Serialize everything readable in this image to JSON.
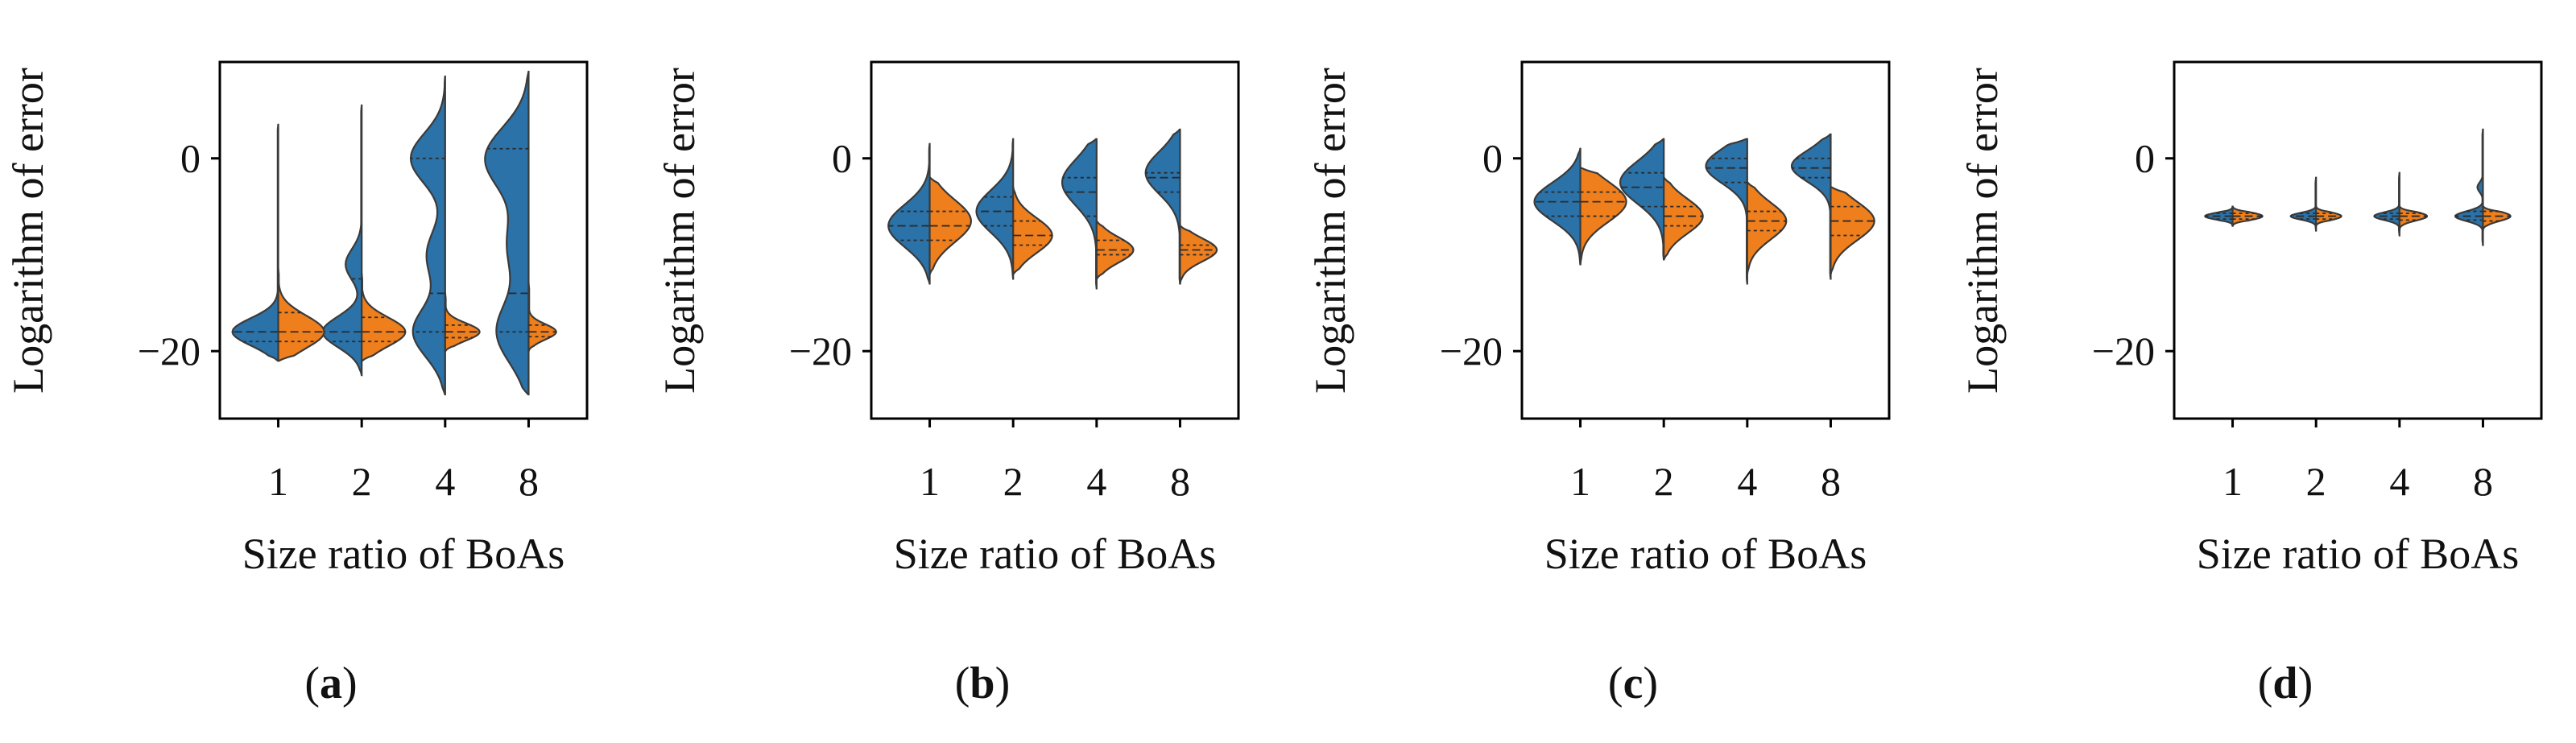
{
  "figure": {
    "colors": {
      "series_a": "#2a72a8",
      "series_b": "#ef7f1c",
      "outline": "#3a3a3a"
    }
  },
  "chart_data": [
    {
      "type": "violin",
      "panel_label": "a",
      "xlabel": "Size ratio of BoAs",
      "ylabel": "Logarithm of error",
      "categories": [
        "1",
        "2",
        "4",
        "8"
      ],
      "yticks": [
        "0",
        "−20"
      ],
      "ylim": [
        -27,
        10
      ],
      "series": [
        {
          "name": "left (blue)",
          "side": "left",
          "violins": [
            {
              "min": -21.0,
              "max": 3.5,
              "median": -18.0,
              "q1": -19.0,
              "q3": -14.0,
              "peaks": [
                {
                  "y": -18.0,
                  "w": 1.0
                }
              ],
              "spread": 1.4
            },
            {
              "min": -22.5,
              "max": 5.5,
              "median": -18.0,
              "q1": -19.0,
              "q3": -12.5,
              "peaks": [
                {
                  "y": -18.0,
                  "w": 0.85
                },
                {
                  "y": -11.0,
                  "w": 0.35
                }
              ],
              "spread": 1.6
            },
            {
              "min": -24.5,
              "max": 8.5,
              "median": -14.0,
              "q1": -18.0,
              "q3": 0.0,
              "peaks": [
                {
                  "y": 0.0,
                  "w": 0.75
                },
                {
                  "y": -18.0,
                  "w": 0.7
                },
                {
                  "y": -10.0,
                  "w": 0.4
                }
              ],
              "spread": 2.6
            },
            {
              "min": -24.5,
              "max": 9.0,
              "median": -14.0,
              "q1": -18.0,
              "q3": 1.0,
              "peaks": [
                {
                  "y": 0.0,
                  "w": 0.95
                },
                {
                  "y": -18.0,
                  "w": 0.7
                },
                {
                  "y": -9.0,
                  "w": 0.45
                }
              ],
              "spread": 3.2
            }
          ]
        },
        {
          "name": "right (orange)",
          "side": "right",
          "violins": [
            {
              "min": -21.0,
              "max": -11.5,
              "median": -18.0,
              "q1": -19.0,
              "q3": -16.0,
              "peaks": [
                {
                  "y": -18.0,
                  "w": 1.0
                }
              ],
              "spread": 1.7
            },
            {
              "min": -21.0,
              "max": -12.0,
              "median": -18.0,
              "q1": -19.0,
              "q3": -16.5,
              "peaks": [
                {
                  "y": -18.0,
                  "w": 0.95
                }
              ],
              "spread": 1.5
            },
            {
              "min": -20.0,
              "max": -14.0,
              "median": -18.0,
              "q1": -18.6,
              "q3": -17.3,
              "peaks": [
                {
                  "y": -18.0,
                  "w": 0.75
                }
              ],
              "spread": 0.9
            },
            {
              "min": -20.0,
              "max": -13.0,
              "median": -18.0,
              "q1": -18.5,
              "q3": -17.3,
              "peaks": [
                {
                  "y": -18.0,
                  "w": 0.6
                }
              ],
              "spread": 0.8
            }
          ]
        }
      ]
    },
    {
      "type": "violin",
      "panel_label": "b",
      "xlabel": "Size ratio of BoAs",
      "ylabel": "Logarithm of error",
      "categories": [
        "1",
        "2",
        "4",
        "8"
      ],
      "yticks": [
        "0",
        "−20"
      ],
      "ylim": [
        -27,
        10
      ],
      "series": [
        {
          "name": "left (blue)",
          "side": "left",
          "violins": [
            {
              "min": -13.0,
              "max": 1.5,
              "median": -7.0,
              "q1": -8.5,
              "q3": -5.5,
              "peaks": [
                {
                  "y": -7.0,
                  "w": 0.9
                }
              ],
              "spread": 2.2
            },
            {
              "min": -12.5,
              "max": 2.0,
              "median": -5.5,
              "q1": -7.0,
              "q3": -4.0,
              "peaks": [
                {
                  "y": -5.5,
                  "w": 0.8
                }
              ],
              "spread": 2.2
            },
            {
              "min": -13.5,
              "max": 2.0,
              "median": -3.5,
              "q1": -6.0,
              "q3": -2.0,
              "peaks": [
                {
                  "y": -2.5,
                  "w": 0.75
                }
              ],
              "spread": 2.4
            },
            {
              "min": -13.0,
              "max": 3.0,
              "median": -2.0,
              "q1": -3.5,
              "q3": -1.5,
              "peaks": [
                {
                  "y": -1.5,
                  "w": 0.75
                }
              ],
              "spread": 2.2
            }
          ]
        },
        {
          "name": "right (orange)",
          "side": "right",
          "violins": [
            {
              "min": -12.0,
              "max": -2.0,
              "median": -7.0,
              "q1": -8.5,
              "q3": -5.5,
              "peaks": [
                {
                  "y": -6.5,
                  "w": 0.9
                }
              ],
              "spread": 2.2
            },
            {
              "min": -12.0,
              "max": -3.0,
              "median": -8.0,
              "q1": -9.0,
              "q3": -6.5,
              "peaks": [
                {
                  "y": -8.0,
                  "w": 0.85
                }
              ],
              "spread": 1.8
            },
            {
              "min": -12.5,
              "max": -6.5,
              "median": -9.5,
              "q1": -10.0,
              "q3": -8.5,
              "peaks": [
                {
                  "y": -9.5,
                  "w": 0.8
                }
              ],
              "spread": 1.3
            },
            {
              "min": -13.0,
              "max": -7.0,
              "median": -9.5,
              "q1": -10.0,
              "q3": -9.0,
              "peaks": [
                {
                  "y": -9.5,
                  "w": 0.8
                }
              ],
              "spread": 1.2
            }
          ]
        }
      ]
    },
    {
      "type": "violin",
      "panel_label": "c",
      "xlabel": "Size ratio of BoAs",
      "ylabel": "Logarithm of error",
      "categories": [
        "1",
        "2",
        "4",
        "8"
      ],
      "yticks": [
        "0",
        "−20"
      ],
      "ylim": [
        -27,
        10
      ],
      "series": [
        {
          "name": "left (blue)",
          "side": "left",
          "violins": [
            {
              "min": -11.0,
              "max": 1.0,
              "median": -4.5,
              "q1": -6.0,
              "q3": -3.5,
              "peaks": [
                {
                  "y": -4.5,
                  "w": 1.0
                }
              ],
              "spread": 2.0
            },
            {
              "min": -10.5,
              "max": 2.0,
              "median": -3.0,
              "q1": -5.0,
              "q3": -1.5,
              "peaks": [
                {
                  "y": -2.5,
                  "w": 0.95
                }
              ],
              "spread": 2.2
            },
            {
              "min": -13.0,
              "max": 2.0,
              "median": -1.0,
              "q1": -2.5,
              "q3": 0.0,
              "peaks": [
                {
                  "y": -0.8,
                  "w": 0.9
                }
              ],
              "spread": 1.8
            },
            {
              "min": -12.5,
              "max": 2.5,
              "median": -1.0,
              "q1": -2.0,
              "q3": 0.0,
              "peaks": [
                {
                  "y": -0.8,
                  "w": 0.85
                }
              ],
              "spread": 1.6
            }
          ]
        },
        {
          "name": "right (orange)",
          "side": "right",
          "violins": [
            {
              "min": -11.0,
              "max": -1.0,
              "median": -4.5,
              "q1": -6.0,
              "q3": -3.5,
              "peaks": [
                {
                  "y": -4.5,
                  "w": 1.0
                }
              ],
              "spread": 2.1
            },
            {
              "min": -10.5,
              "max": -2.0,
              "median": -6.0,
              "q1": -7.0,
              "q3": -5.0,
              "peaks": [
                {
                  "y": -6.0,
                  "w": 0.85
                }
              ],
              "spread": 1.8
            },
            {
              "min": -12.0,
              "max": -2.5,
              "median": -6.5,
              "q1": -7.5,
              "q3": -5.5,
              "peaks": [
                {
                  "y": -6.5,
                  "w": 0.85
                }
              ],
              "spread": 1.9
            },
            {
              "min": -12.0,
              "max": -3.0,
              "median": -6.5,
              "q1": -8.0,
              "q3": -5.0,
              "peaks": [
                {
                  "y": -6.5,
                  "w": 0.95
                }
              ],
              "spread": 2.0
            }
          ]
        }
      ]
    },
    {
      "type": "violin",
      "panel_label": "d",
      "xlabel": "Size ratio of BoAs",
      "ylabel": "Logarithm of error",
      "categories": [
        "1",
        "2",
        "4",
        "8"
      ],
      "yticks": [
        "0",
        "−20"
      ],
      "ylim": [
        -27,
        10
      ],
      "series": [
        {
          "name": "left (blue)",
          "side": "left",
          "violins": [
            {
              "min": -7.0,
              "max": -5.0,
              "median": -6.0,
              "q1": -6.3,
              "q3": -5.7,
              "peaks": [
                {
                  "y": -6.0,
                  "w": 0.6
                }
              ],
              "spread": 0.35
            },
            {
              "min": -7.5,
              "max": -2.0,
              "median": -6.0,
              "q1": -6.3,
              "q3": -5.7,
              "peaks": [
                {
                  "y": -6.0,
                  "w": 0.55
                }
              ],
              "spread": 0.35
            },
            {
              "min": -8.0,
              "max": -1.5,
              "median": -6.0,
              "q1": -6.3,
              "q3": -5.7,
              "peaks": [
                {
                  "y": -6.0,
                  "w": 0.55
                }
              ],
              "spread": 0.4
            },
            {
              "min": -9.0,
              "max": 3.0,
              "median": -6.0,
              "q1": -6.4,
              "q3": -5.5,
              "peaks": [
                {
                  "y": -6.0,
                  "w": 0.6
                },
                {
                  "y": -3.0,
                  "w": 0.12
                }
              ],
              "spread": 0.5
            }
          ]
        },
        {
          "name": "right (orange)",
          "side": "right",
          "violins": [
            {
              "min": -7.0,
              "max": -5.0,
              "median": -6.0,
              "q1": -6.3,
              "q3": -5.7,
              "peaks": [
                {
                  "y": -6.0,
                  "w": 0.65
                }
              ],
              "spread": 0.4
            },
            {
              "min": -7.0,
              "max": -5.0,
              "median": -6.0,
              "q1": -6.3,
              "q3": -5.7,
              "peaks": [
                {
                  "y": -6.0,
                  "w": 0.55
                }
              ],
              "spread": 0.4
            },
            {
              "min": -7.5,
              "max": -5.0,
              "median": -6.0,
              "q1": -6.4,
              "q3": -5.7,
              "peaks": [
                {
                  "y": -6.0,
                  "w": 0.6
                }
              ],
              "spread": 0.45
            },
            {
              "min": -7.5,
              "max": -5.0,
              "median": -6.0,
              "q1": -6.5,
              "q3": -5.5,
              "peaks": [
                {
                  "y": -6.0,
                  "w": 0.6
                }
              ],
              "spread": 0.5
            }
          ]
        }
      ]
    }
  ]
}
